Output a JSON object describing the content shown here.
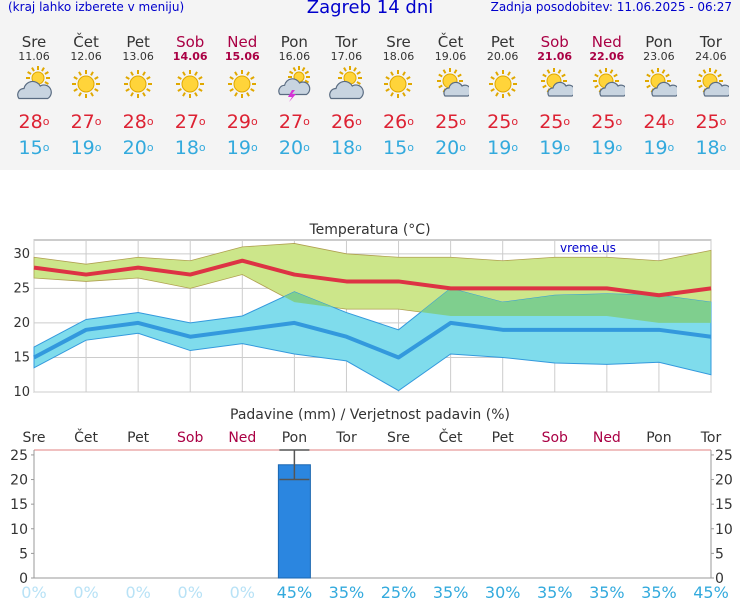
{
  "header": {
    "left_note": "(kraj lahko izberete v meniju)",
    "title": "Zagreb 14 dni",
    "updated": "Zadnja posodobitev: 11.06.2025 - 06:27"
  },
  "days": [
    {
      "name": "Sre",
      "date": "11.06",
      "weekend": false,
      "icon": "partly-cloudy-icon",
      "tmax": "28",
      "tmin": "15"
    },
    {
      "name": "Čet",
      "date": "12.06",
      "weekend": false,
      "icon": "sun-icon",
      "tmax": "27",
      "tmin": "19"
    },
    {
      "name": "Pet",
      "date": "13.06",
      "weekend": false,
      "icon": "sun-icon",
      "tmax": "28",
      "tmin": "20"
    },
    {
      "name": "Sob",
      "date": "14.06",
      "weekend": true,
      "icon": "sun-icon",
      "tmax": "27",
      "tmin": "18"
    },
    {
      "name": "Ned",
      "date": "15.06",
      "weekend": true,
      "icon": "sun-icon",
      "tmax": "29",
      "tmin": "19"
    },
    {
      "name": "Pon",
      "date": "16.06",
      "weekend": false,
      "icon": "thunderstorm-icon",
      "tmax": "27",
      "tmin": "20"
    },
    {
      "name": "Tor",
      "date": "17.06",
      "weekend": false,
      "icon": "partly-cloudy-icon",
      "tmax": "26",
      "tmin": "18"
    },
    {
      "name": "Sre",
      "date": "18.06",
      "weekend": false,
      "icon": "sun-icon",
      "tmax": "26",
      "tmin": "15"
    },
    {
      "name": "Čet",
      "date": "19.06",
      "weekend": false,
      "icon": "sun-cloud-icon",
      "tmax": "25",
      "tmin": "20"
    },
    {
      "name": "Pet",
      "date": "20.06",
      "weekend": false,
      "icon": "sun-icon",
      "tmax": "25",
      "tmin": "19"
    },
    {
      "name": "Sob",
      "date": "21.06",
      "weekend": true,
      "icon": "sun-cloud-icon",
      "tmax": "25",
      "tmin": "19"
    },
    {
      "name": "Ned",
      "date": "22.06",
      "weekend": true,
      "icon": "sun-cloud-icon",
      "tmax": "25",
      "tmin": "19"
    },
    {
      "name": "Pon",
      "date": "23.06",
      "weekend": false,
      "icon": "sun-cloud-icon",
      "tmax": "24",
      "tmin": "19"
    },
    {
      "name": "Tor",
      "date": "24.06",
      "weekend": false,
      "icon": "sun-cloud-icon",
      "tmax": "25",
      "tmin": "18"
    }
  ],
  "colors": {
    "max_line": "#dd3344",
    "min_line": "#3399dd",
    "max_band": "#cce68a",
    "min_band": "#7fdcec",
    "overlap_band": "#7fcf8e",
    "bar": "#2b86e0",
    "weekend": "#aa0044",
    "probability": "#88ccee",
    "probability_high": "#33aadd"
  },
  "chart_data": [
    {
      "type": "line",
      "title": "Temperatura (°C)",
      "watermark": "vreme.us",
      "categories": [
        "Sre",
        "Čet",
        "Pet",
        "Sob",
        "Ned",
        "Pon",
        "Tor",
        "Sre",
        "Čet",
        "Pet",
        "Sob",
        "Ned",
        "Pon",
        "Tor"
      ],
      "ylim": [
        10,
        32
      ],
      "yticks": [
        10,
        15,
        20,
        25,
        30
      ],
      "grid": true,
      "series": [
        {
          "values": [
            28,
            27,
            28,
            27,
            29,
            27,
            26,
            26,
            25,
            25,
            25,
            25,
            24,
            25
          ],
          "band_high": [
            29.5,
            28.5,
            29.5,
            29,
            31,
            31.5,
            30,
            29.5,
            29.5,
            29,
            29.5,
            29.5,
            29,
            30.5
          ],
          "band_low": [
            26.5,
            26,
            26.5,
            25,
            27,
            23,
            22,
            22,
            21,
            21,
            21,
            21,
            20,
            20
          ]
        },
        {
          "values": [
            15,
            19,
            20,
            18,
            19,
            20,
            18,
            15,
            20,
            19,
            19,
            19,
            19,
            18
          ],
          "band_high": [
            16.5,
            20.5,
            21.5,
            20,
            21,
            24.5,
            21.5,
            19,
            25,
            23,
            24,
            24.2,
            24,
            23
          ],
          "band_low": [
            13.5,
            17.5,
            18.5,
            16,
            17,
            15.5,
            14.5,
            10.2,
            15.5,
            15,
            14.2,
            14,
            14.3,
            12.5
          ]
        }
      ]
    },
    {
      "type": "bar",
      "title": "Padavine (mm) / Verjetnost padavin (%)",
      "categories": [
        "Sre",
        "Čet",
        "Pet",
        "Sob",
        "Ned",
        "Pon",
        "Tor",
        "Sre",
        "Čet",
        "Pet",
        "Sob",
        "Ned",
        "Pon",
        "Tor"
      ],
      "values": [
        0,
        0,
        0,
        0,
        0,
        23,
        0,
        0,
        0,
        0,
        0,
        0,
        0,
        0
      ],
      "error_range": [
        [
          0,
          0
        ],
        [
          0,
          0
        ],
        [
          0,
          0
        ],
        [
          0,
          0
        ],
        [
          0,
          0
        ],
        [
          20,
          26
        ],
        [
          0,
          0
        ],
        [
          0,
          0
        ],
        [
          0,
          0
        ],
        [
          0,
          0
        ],
        [
          0,
          0
        ],
        [
          0,
          0
        ],
        [
          0,
          0
        ],
        [
          0,
          0
        ]
      ],
      "probability": [
        "0%",
        "0%",
        "0%",
        "0%",
        "0%",
        "45%",
        "35%",
        "25%",
        "35%",
        "30%",
        "35%",
        "35%",
        "35%",
        "45%"
      ],
      "ylim": [
        0,
        26
      ],
      "yticks": [
        0,
        5,
        10,
        15,
        20,
        25
      ]
    }
  ]
}
